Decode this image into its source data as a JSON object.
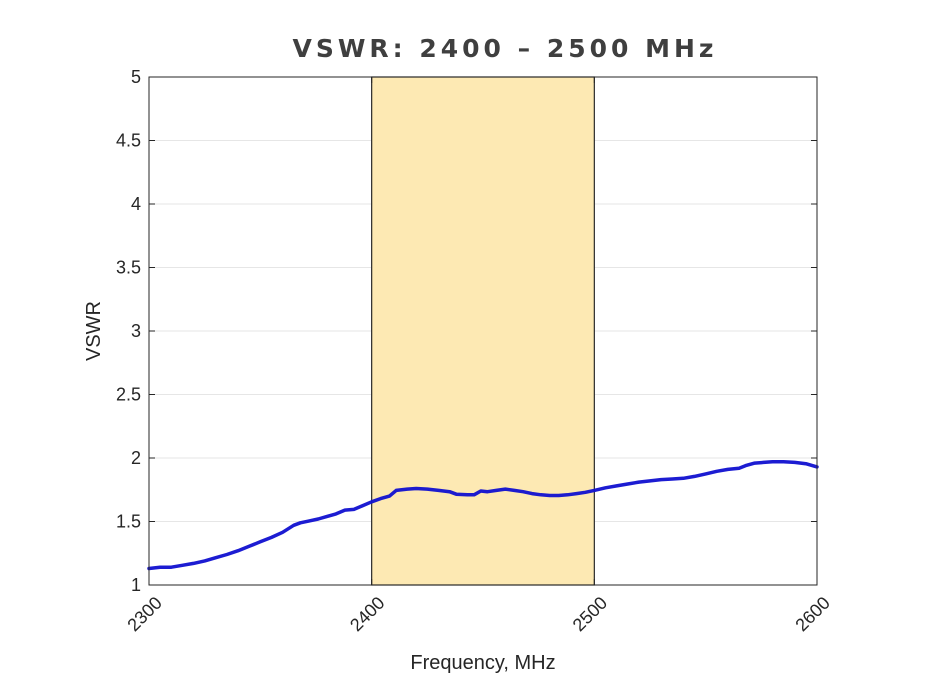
{
  "chart_data": {
    "type": "line",
    "title": "VSWR: 2400 – 2500 MHz",
    "xlabel": "Frequency, MHz",
    "ylabel": "VSWR",
    "xlim": [
      2300,
      2600
    ],
    "ylim": [
      1,
      5
    ],
    "xticks": [
      2300,
      2400,
      2500,
      2600
    ],
    "yticks": [
      1,
      1.5,
      2,
      2.5,
      3,
      3.5,
      4,
      4.5,
      5
    ],
    "xtick_labels": [
      "2300",
      "2400",
      "2500",
      "2600"
    ],
    "ytick_labels": [
      "1",
      "1.5",
      "2",
      "2.5",
      "3",
      "3.5",
      "4",
      "4.5",
      "5"
    ],
    "grid": true,
    "highlight_band": {
      "x_start": 2400,
      "x_end": 2500,
      "color": "#fde9b3"
    },
    "series": [
      {
        "color": "#1010d0",
        "x": [
          2300,
          2305,
          2310,
          2315,
          2320,
          2325,
          2330,
          2335,
          2340,
          2345,
          2350,
          2355,
          2360,
          2365,
          2368,
          2372,
          2376,
          2380,
          2384,
          2388,
          2392,
          2396,
          2400,
          2404,
          2408,
          2411,
          2416,
          2420,
          2425,
          2430,
          2435,
          2438,
          2443,
          2446,
          2449,
          2452,
          2456,
          2460,
          2464,
          2468,
          2472,
          2476,
          2480,
          2484,
          2488,
          2492,
          2496,
          2500,
          2505,
          2510,
          2515,
          2520,
          2525,
          2530,
          2535,
          2540,
          2545,
          2550,
          2555,
          2560,
          2565,
          2568,
          2572,
          2576,
          2580,
          2585,
          2590,
          2595,
          2600
        ],
        "y": [
          1.13,
          1.14,
          1.14,
          1.155,
          1.17,
          1.19,
          1.215,
          1.24,
          1.27,
          1.305,
          1.34,
          1.375,
          1.415,
          1.47,
          1.49,
          1.505,
          1.52,
          1.54,
          1.56,
          1.59,
          1.595,
          1.625,
          1.655,
          1.68,
          1.7,
          1.745,
          1.755,
          1.76,
          1.755,
          1.745,
          1.735,
          1.715,
          1.71,
          1.71,
          1.74,
          1.735,
          1.745,
          1.755,
          1.745,
          1.735,
          1.72,
          1.71,
          1.705,
          1.705,
          1.71,
          1.72,
          1.73,
          1.745,
          1.765,
          1.78,
          1.795,
          1.81,
          1.82,
          1.83,
          1.835,
          1.84,
          1.855,
          1.875,
          1.895,
          1.91,
          1.92,
          1.94,
          1.96,
          1.965,
          1.97,
          1.97,
          1.965,
          1.955,
          1.93
        ]
      }
    ]
  }
}
